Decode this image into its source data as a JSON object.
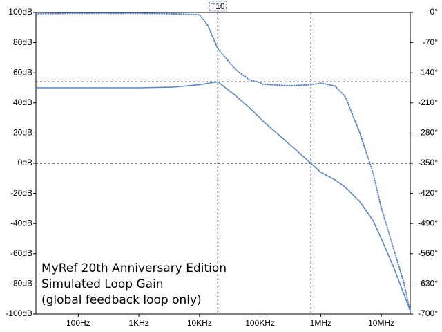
{
  "chart_data": {
    "type": "line",
    "log_x": true,
    "x": [
      20,
      100,
      1000,
      3700,
      10000,
      13700,
      20000,
      39000,
      66000,
      100000,
      111000,
      316000,
      690000,
      1000000,
      1730000,
      2560000,
      4330000,
      7300000,
      10000000,
      16000000,
      23700000,
      30000000
    ],
    "series": [
      {
        "name": "Gain",
        "color": "#5b87c8",
        "style": "solid",
        "values": [
          50,
          50,
          50,
          50.5,
          52,
          53,
          54,
          45,
          37,
          30,
          28,
          12,
          0,
          -6,
          -11,
          -16,
          -25,
          -38,
          -50,
          -69,
          -87,
          -98
        ]
      },
      {
        "name": "Phase",
        "color": "#5b87c8",
        "style": "dotted",
        "axis": "y2",
        "values": [
          -3,
          -2,
          -2,
          -3,
          -5,
          -30,
          -84,
          -132,
          -156,
          -163,
          -167,
          -170,
          -168,
          -164,
          -171,
          -196,
          -276,
          -372,
          -453,
          -549,
          -629,
          -694
        ]
      }
    ],
    "xlim": [
      20,
      30000000
    ],
    "xticks": [
      {
        "value": 100,
        "label": "100Hz"
      },
      {
        "value": 1000,
        "label": "1KHz"
      },
      {
        "value": 10000,
        "label": "10KHz"
      },
      {
        "value": 100000,
        "label": "100KHz"
      },
      {
        "value": 1000000,
        "label": "1MHz"
      },
      {
        "value": 10000000,
        "label": "10MHz"
      }
    ],
    "ylim": [
      -100,
      100
    ],
    "yticks": [
      {
        "value": 100,
        "label": "100dB"
      },
      {
        "value": 80,
        "label": "80dB"
      },
      {
        "value": 60,
        "label": "60dB"
      },
      {
        "value": 40,
        "label": "40dB"
      },
      {
        "value": 20,
        "label": "20dB"
      },
      {
        "value": 0,
        "label": "0dB"
      },
      {
        "value": -20,
        "label": "-20dB"
      },
      {
        "value": -40,
        "label": "-40dB"
      },
      {
        "value": -60,
        "label": "-60dB"
      },
      {
        "value": -80,
        "label": "-80dB"
      },
      {
        "value": -100,
        "label": "-100dB"
      }
    ],
    "y2lim": [
      -700,
      0
    ],
    "y2ticks": [
      {
        "value": 0,
        "label": "0°"
      },
      {
        "value": -70,
        "label": "-70°"
      },
      {
        "value": -140,
        "label": "-140°"
      },
      {
        "value": -210,
        "label": "-210°"
      },
      {
        "value": -280,
        "label": "-280°"
      },
      {
        "value": -350,
        "label": "-350°"
      },
      {
        "value": -420,
        "label": "-420°"
      },
      {
        "value": -490,
        "label": "-490°"
      },
      {
        "value": -560,
        "label": "-560°"
      },
      {
        "value": -630,
        "label": "-630°"
      },
      {
        "value": -700,
        "label": "-700°"
      }
    ],
    "cursor_label": "T10",
    "cursor_x": [
      20000,
      690000
    ],
    "cursor_y": [
      54,
      0
    ],
    "annotation": [
      "MyRef 20th Anniversary Edition",
      "Simulated Loop Gain",
      "(global feedback loop only)"
    ]
  }
}
